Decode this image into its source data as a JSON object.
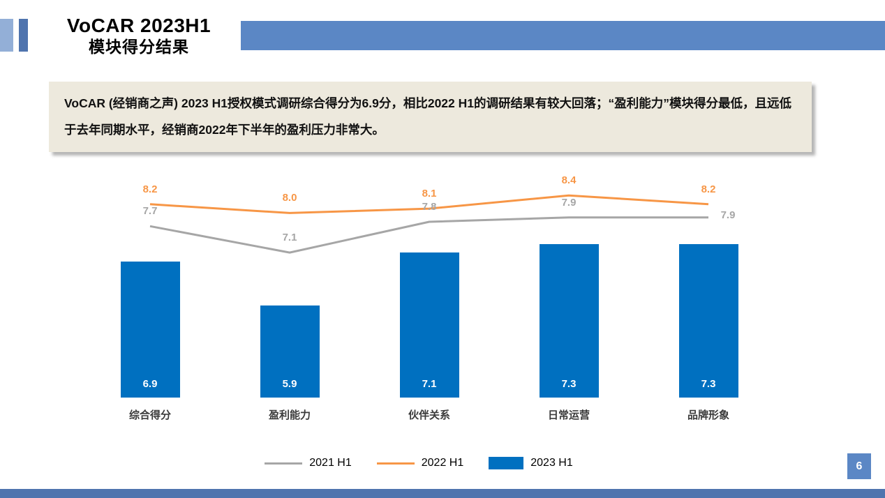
{
  "header": {
    "title_line1": "VoCAR 2023H1",
    "title_line2": "模块得分结果"
  },
  "summary": {
    "text": "VoCAR (经销商之声) 2023 H1授权模式调研综合得分为6.9分，相比2022 H1的调研结果有较大回落；“盈利能力”模块得分最低，且远低于去年同期水平，经销商2022年下半年的盈利压力非常大。"
  },
  "chart_data": {
    "type": "bar+line combo",
    "title": "",
    "xlabel": "",
    "ylabel": "",
    "grid": false,
    "legend_position": "bottom",
    "data_labels": true,
    "ylim": [
      3.8,
      9.0
    ],
    "categories": [
      "综合得分",
      "盈利能力",
      "伙伴关系",
      "日常运营",
      "品牌形象"
    ],
    "series": [
      {
        "name": "2021 H1",
        "type": "line",
        "color": "#A6A6A6",
        "values": [
          7.7,
          7.1,
          7.8,
          7.9,
          7.9
        ]
      },
      {
        "name": "2022 H1",
        "type": "line",
        "color": "#F79646",
        "values": [
          8.2,
          8.0,
          8.1,
          8.4,
          8.2
        ]
      },
      {
        "name": "2023 H1",
        "type": "bar",
        "color": "#0070C0",
        "values": [
          6.9,
          5.9,
          7.1,
          7.3,
          7.3
        ]
      }
    ]
  },
  "page": {
    "number": "6"
  },
  "colors": {
    "header_blue": "#5B87C5",
    "accent_light_blue": "#93AFD7",
    "accent_dark_blue": "#4F74AE",
    "bar_blue": "#0070C0",
    "line_gray": "#A6A6A6",
    "line_orange": "#F79646",
    "summary_bg": "#EDE9DD"
  }
}
